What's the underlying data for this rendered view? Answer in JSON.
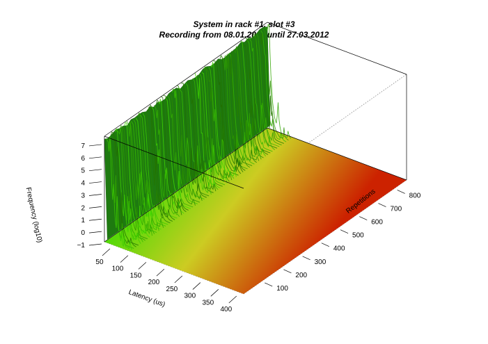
{
  "chart_data": {
    "type": "surface3d",
    "title": "System in rack #1, slot #3",
    "subtitle": "Recording from 08.01.2011 until 27.03.2012",
    "xlabel": "Latency (us)",
    "ylabel": "Repetitions",
    "zlabel": "Frequency (log10)",
    "x_ticks": [
      50,
      100,
      150,
      200,
      250,
      300,
      350,
      400
    ],
    "y_ticks": [
      100,
      200,
      300,
      400,
      500,
      600,
      700,
      800
    ],
    "z_ticks": [
      -1,
      0,
      1,
      2,
      3,
      4,
      5,
      6,
      7
    ],
    "z_tick_labels": [
      "−1",
      "0",
      "1",
      "2",
      "3",
      "4",
      "5",
      "6",
      "7"
    ],
    "xlim": [
      25,
      410
    ],
    "ylim": [
      0,
      860
    ],
    "zlim": [
      -1,
      7.5
    ],
    "color_scale": [
      "#33dd00",
      "#cccc22",
      "#cc2200"
    ],
    "profile_x": [
      25,
      30,
      35,
      40,
      45,
      50,
      60,
      70
    ],
    "profile_z": [
      7.2,
      7.0,
      5.5,
      3.0,
      1.2,
      0.2,
      -0.6,
      -1.0
    ]
  }
}
